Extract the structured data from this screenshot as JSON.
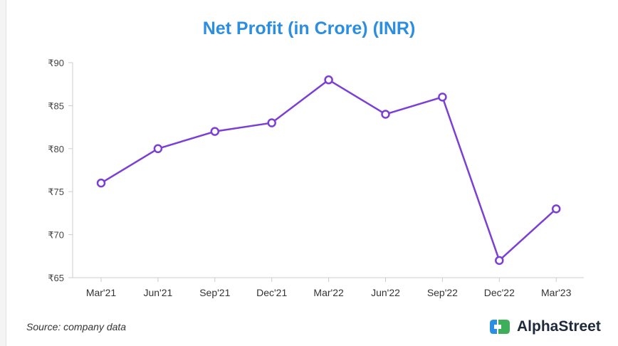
{
  "title": "Net Profit (in Crore) (INR)",
  "source": "Source: company data",
  "brand": {
    "name": "AlphaStreet",
    "logo_icon": "alphastreet-logo-icon"
  },
  "colors": {
    "title": "#2b8ee0",
    "line": "#7b3fd6",
    "axis": "#cccccc",
    "logo_blue": "#2b8ee0",
    "logo_green": "#3fae5a"
  },
  "chart_data": {
    "type": "line",
    "title": "Net Profit (in Crore) (INR)",
    "categories": [
      "Mar'21",
      "Jun'21",
      "Sep'21",
      "Dec'21",
      "Mar'22",
      "Jun'22",
      "Sep'22",
      "Dec'22",
      "Mar'23"
    ],
    "series": [
      {
        "values": [
          76,
          80,
          82,
          83,
          88,
          84,
          86,
          67,
          73
        ]
      }
    ],
    "y_ticks": [
      65,
      70,
      75,
      80,
      85,
      90
    ],
    "y_prefix": "₹",
    "ylim": [
      65,
      90
    ],
    "grid": false,
    "xlabel": "",
    "ylabel": ""
  }
}
